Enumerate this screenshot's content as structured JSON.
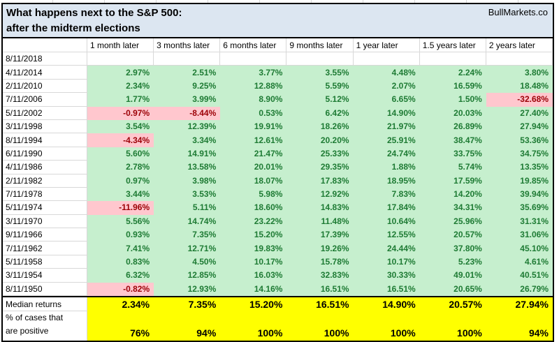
{
  "title": {
    "line1": "What happens next to the S&P 500:",
    "line2": "after the midterm elections",
    "brand": "BullMarkets.co"
  },
  "colors": {
    "title_bg": "#dce6f1",
    "positive_bg": "#c6efce",
    "positive_text": "#1e7b34",
    "negative_bg": "#ffc7ce",
    "negative_text": "#9c0006",
    "summary_bg": "#ffff00",
    "gridline": "#d8d8d8",
    "border": "#000000"
  },
  "chart_data": {
    "type": "table",
    "columns": [
      "1 month later",
      "3 months later",
      "6 months later",
      "9 months later",
      "1 year later",
      "1.5 years later",
      "2 years later"
    ],
    "rows": [
      {
        "date": "8/11/2018",
        "values": [
          null,
          null,
          null,
          null,
          null,
          null,
          null
        ]
      },
      {
        "date": "4/11/2014",
        "values": [
          "2.97%",
          "2.51%",
          "3.77%",
          "3.55%",
          "4.48%",
          "2.24%",
          "3.80%"
        ]
      },
      {
        "date": "2/11/2010",
        "values": [
          "2.34%",
          "9.25%",
          "12.88%",
          "5.59%",
          "2.07%",
          "16.59%",
          "18.48%"
        ]
      },
      {
        "date": "7/11/2006",
        "values": [
          "1.77%",
          "3.99%",
          "8.90%",
          "5.12%",
          "6.65%",
          "1.50%",
          "-32.68%"
        ]
      },
      {
        "date": "5/11/2002",
        "values": [
          "-0.97%",
          "-8.44%",
          "0.53%",
          "6.42%",
          "14.90%",
          "20.03%",
          "27.40%"
        ]
      },
      {
        "date": "3/11/1998",
        "values": [
          "3.54%",
          "12.39%",
          "19.91%",
          "18.26%",
          "21.97%",
          "26.89%",
          "27.94%"
        ]
      },
      {
        "date": "8/11/1994",
        "values": [
          "-4.34%",
          "3.34%",
          "12.61%",
          "20.20%",
          "25.91%",
          "38.47%",
          "53.36%"
        ]
      },
      {
        "date": "6/11/1990",
        "values": [
          "5.60%",
          "14.91%",
          "21.47%",
          "25.33%",
          "24.74%",
          "33.75%",
          "34.75%"
        ]
      },
      {
        "date": "4/11/1986",
        "values": [
          "2.78%",
          "13.58%",
          "20.01%",
          "29.35%",
          "1.88%",
          "5.74%",
          "13.35%"
        ]
      },
      {
        "date": "2/11/1982",
        "values": [
          "0.97%",
          "3.98%",
          "18.07%",
          "17.83%",
          "18.95%",
          "17.59%",
          "19.85%"
        ]
      },
      {
        "date": "7/11/1978",
        "values": [
          "3.44%",
          "3.53%",
          "5.98%",
          "12.92%",
          "7.83%",
          "14.20%",
          "39.94%"
        ]
      },
      {
        "date": "5/11/1974",
        "values": [
          "-11.96%",
          "5.11%",
          "18.60%",
          "14.83%",
          "17.84%",
          "34.31%",
          "35.69%"
        ]
      },
      {
        "date": "3/11/1970",
        "values": [
          "5.56%",
          "14.74%",
          "23.22%",
          "11.48%",
          "10.64%",
          "25.96%",
          "31.31%"
        ]
      },
      {
        "date": "9/11/1966",
        "values": [
          "0.93%",
          "7.35%",
          "15.20%",
          "17.39%",
          "12.55%",
          "20.57%",
          "31.06%"
        ]
      },
      {
        "date": "7/11/1962",
        "values": [
          "7.41%",
          "12.71%",
          "19.83%",
          "19.26%",
          "24.44%",
          "37.80%",
          "45.10%"
        ]
      },
      {
        "date": "5/11/1958",
        "values": [
          "0.83%",
          "4.50%",
          "10.17%",
          "15.78%",
          "10.17%",
          "5.23%",
          "4.61%"
        ]
      },
      {
        "date": "3/11/1954",
        "values": [
          "6.32%",
          "12.85%",
          "16.03%",
          "32.83%",
          "30.33%",
          "49.01%",
          "40.51%"
        ]
      },
      {
        "date": "8/11/1950",
        "values": [
          "-0.82%",
          "12.93%",
          "14.16%",
          "16.51%",
          "16.51%",
          "20.65%",
          "26.79%"
        ]
      }
    ],
    "summary": {
      "median_label": "Median returns",
      "median_values": [
        "2.34%",
        "7.35%",
        "15.20%",
        "16.51%",
        "14.90%",
        "20.57%",
        "27.94%"
      ],
      "positive_label_line1": "% of cases that",
      "positive_label_line2": "are positive",
      "positive_values": [
        "76%",
        "94%",
        "100%",
        "100%",
        "100%",
        "100%",
        "94%"
      ]
    }
  }
}
